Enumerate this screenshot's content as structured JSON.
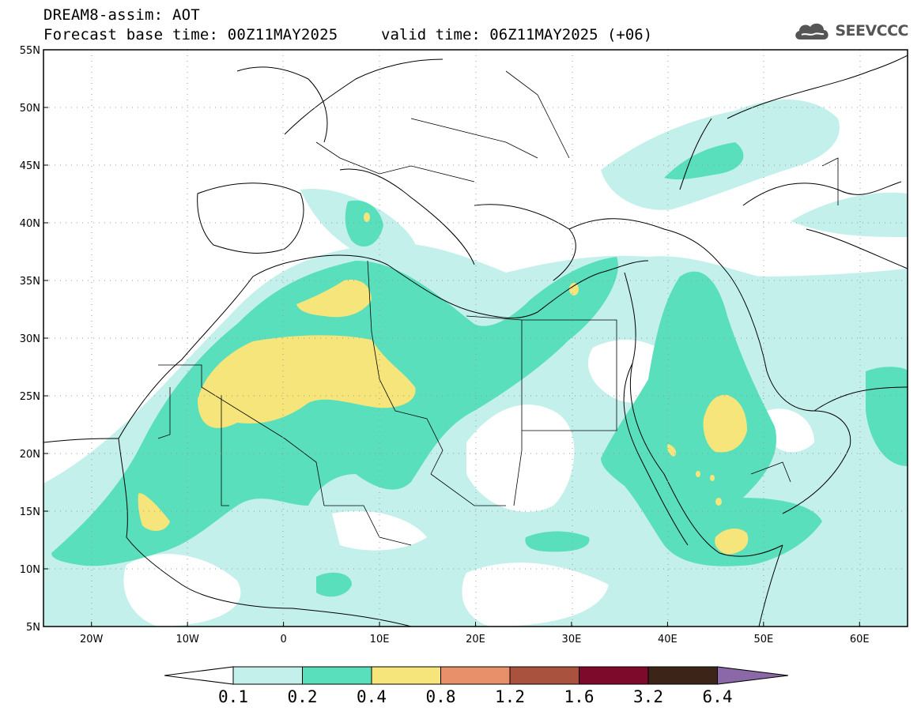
{
  "header": {
    "title_line1": "DREAM8-assim: AOT",
    "base_time_label": "Forecast base time: 00Z11MAY2025",
    "valid_time_label": "valid time: 06Z11MAY2025 (+06)",
    "logo_text": "SEEVCCC",
    "logo_icon": "cloud-icon"
  },
  "map": {
    "projection": "lat-lon",
    "lon_range": [
      -25,
      65
    ],
    "lat_range": [
      5,
      55
    ],
    "lat_ticks": [
      {
        "value": 55,
        "label": "55N"
      },
      {
        "value": 50,
        "label": "50N"
      },
      {
        "value": 45,
        "label": "45N"
      },
      {
        "value": 40,
        "label": "40N"
      },
      {
        "value": 35,
        "label": "35N"
      },
      {
        "value": 30,
        "label": "30N"
      },
      {
        "value": 25,
        "label": "25N"
      },
      {
        "value": 20,
        "label": "20N"
      },
      {
        "value": 15,
        "label": "15N"
      },
      {
        "value": 10,
        "label": "10N"
      },
      {
        "value": 5,
        "label": "5N"
      }
    ],
    "lon_ticks": [
      {
        "value": -20,
        "label": "20W"
      },
      {
        "value": -10,
        "label": "10W"
      },
      {
        "value": 0,
        "label": "0"
      },
      {
        "value": 10,
        "label": "10E"
      },
      {
        "value": 20,
        "label": "20E"
      },
      {
        "value": 30,
        "label": "30E"
      },
      {
        "value": 40,
        "label": "40E"
      },
      {
        "value": 50,
        "label": "50E"
      },
      {
        "value": 60,
        "label": "60E"
      }
    ],
    "grid": "dotted",
    "legend_placement": "bottom"
  },
  "colorbar": {
    "colors": [
      "#c4f0ec",
      "#5adfbc",
      "#f6e57a",
      "#e8906a",
      "#a9523e",
      "#7d0a2a",
      "#3c2418",
      "#8b68a8"
    ],
    "labels": [
      "0.1",
      "0.2",
      "0.4",
      "0.8",
      "1.2",
      "1.6",
      "3.2",
      "6.4"
    ]
  }
}
